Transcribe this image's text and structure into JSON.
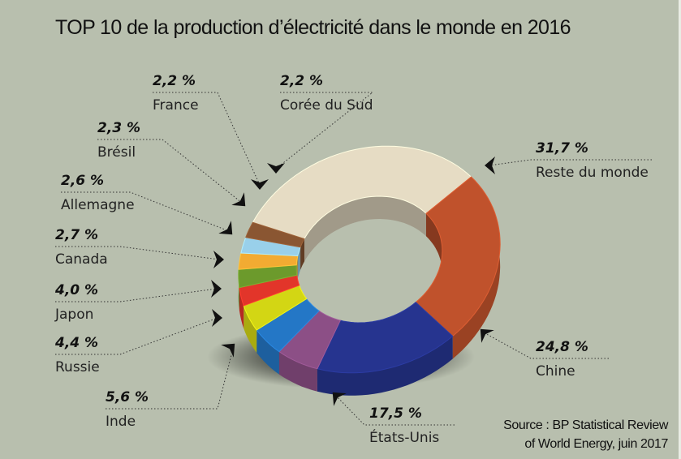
{
  "title": "TOP 10 de la production d’électricité dans le monde en 2016",
  "source": [
    "Source : BP Statistical Review",
    "of World Energy, juin 2017"
  ],
  "chart_data": {
    "type": "pie",
    "variant": "3d-donut",
    "title": "TOP 10 de la production d’électricité dans le monde en 2016",
    "unit": "%",
    "slices": [
      {
        "label": "Reste du monde",
        "value": 31.7,
        "display": "31,7 %",
        "color": "#e6dcc4"
      },
      {
        "label": "Chine",
        "value": 24.8,
        "display": "24,8 %",
        "color": "#c0522c"
      },
      {
        "label": "États-Unis",
        "value": 17.5,
        "display": "17,5 %",
        "color": "#26348f"
      },
      {
        "label": "Inde",
        "value": 5.6,
        "display": "5,6 %",
        "color": "#8c4f86"
      },
      {
        "label": "Russie",
        "value": 4.4,
        "display": "4,4 %",
        "color": "#2477c6"
      },
      {
        "label": "Japon",
        "value": 4.0,
        "display": "4,0 %",
        "color": "#d3d614"
      },
      {
        "label": "Canada",
        "value": 2.7,
        "display": "2,7 %",
        "color": "#e2352a"
      },
      {
        "label": "Allemagne",
        "value": 2.6,
        "display": "2,6 %",
        "color": "#6c9a2c"
      },
      {
        "label": "Brésil",
        "value": 2.3,
        "display": "2,3 %",
        "color": "#f2ab32"
      },
      {
        "label": "France",
        "value": 2.2,
        "display": "2,2 %",
        "color": "#99d0ea"
      },
      {
        "label": "Corée du Sud",
        "value": 2.2,
        "display": "2,2 %",
        "color": "#8a5632"
      }
    ],
    "source": "Source : BP Statistical Review of World Energy, juin 2017"
  }
}
